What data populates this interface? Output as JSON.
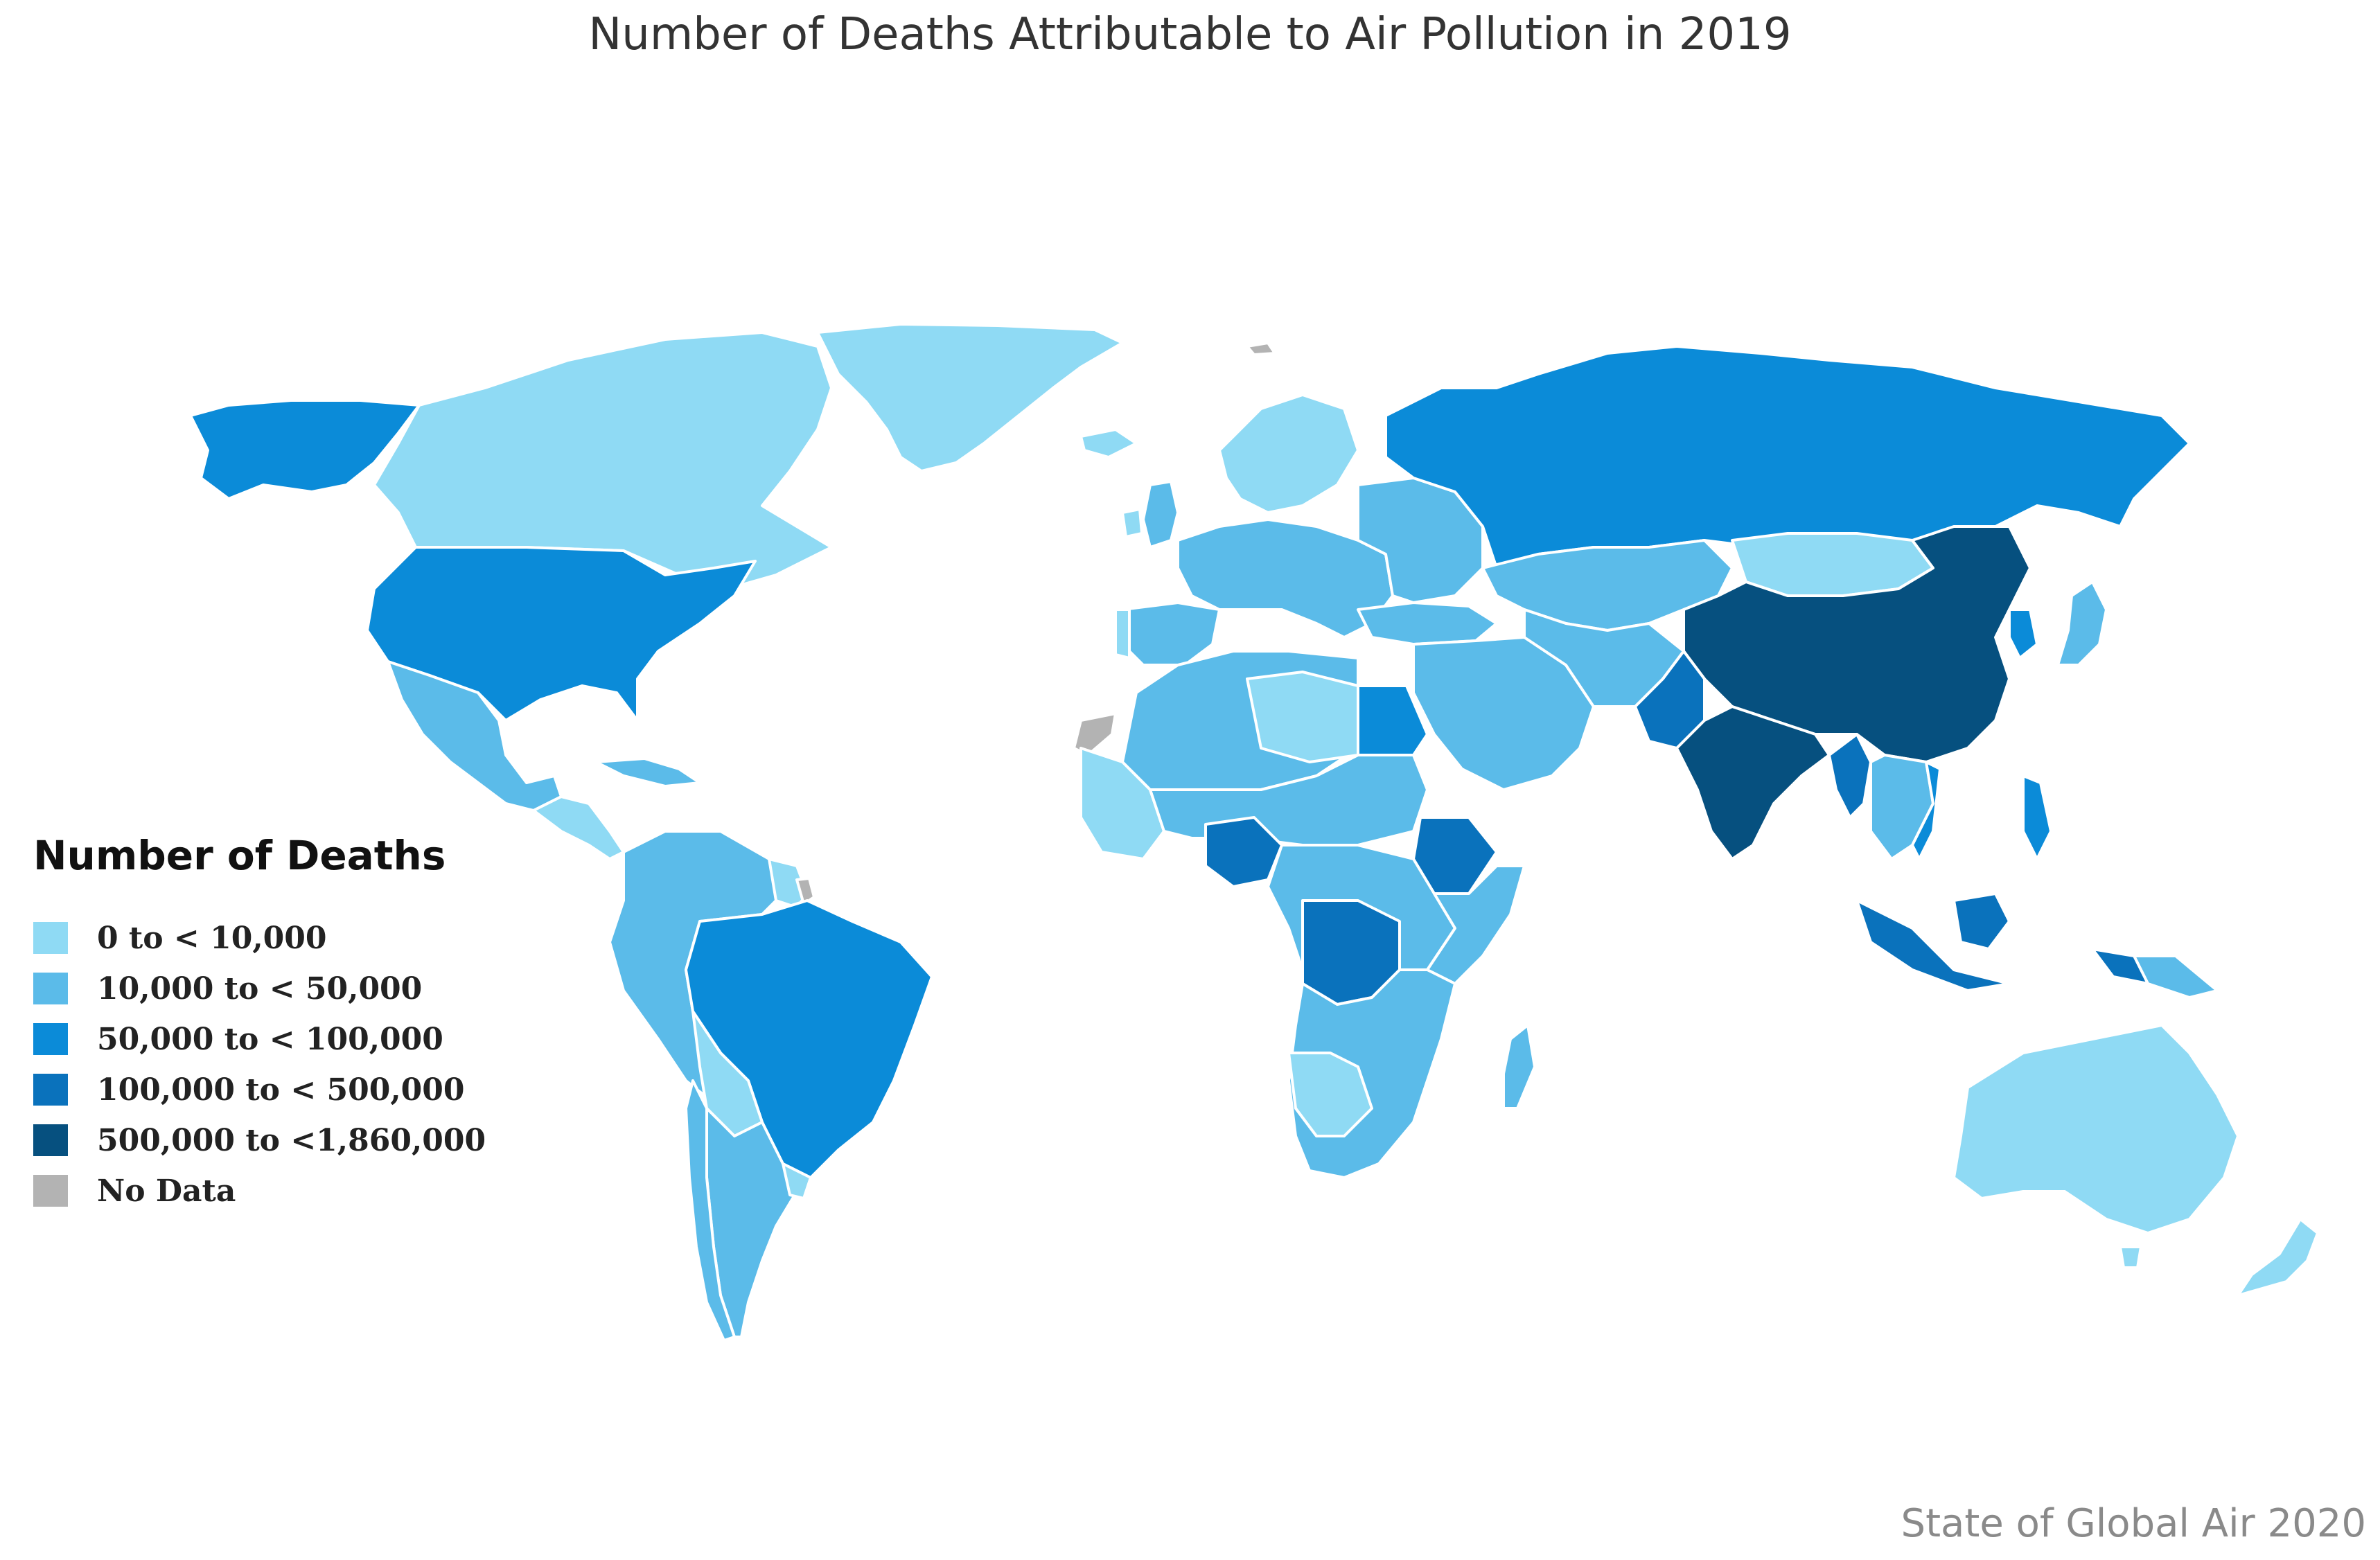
{
  "title": "Number of Deaths Attributable to Air Pollution in 2019",
  "source": "State of Global Air 2020",
  "legend": {
    "title": "Number of Deaths",
    "items": [
      {
        "label": "0 to < 10,000",
        "color": "#8fdaf4"
      },
      {
        "label": "10,000 to < 50,000",
        "color": "#5bbbe9"
      },
      {
        "label": "50,000 to < 100,000",
        "color": "#0b8bd8"
      },
      {
        "label": "100,000 to < 500,000",
        "color": "#0a72bc"
      },
      {
        "label": "500,000 to <1,860,000",
        "color": "#06507f"
      },
      {
        "label": "No Data",
        "color": "#b3b3b3"
      }
    ]
  },
  "colors": {
    "border": "#ffffff",
    "background": "#ffffff"
  }
}
